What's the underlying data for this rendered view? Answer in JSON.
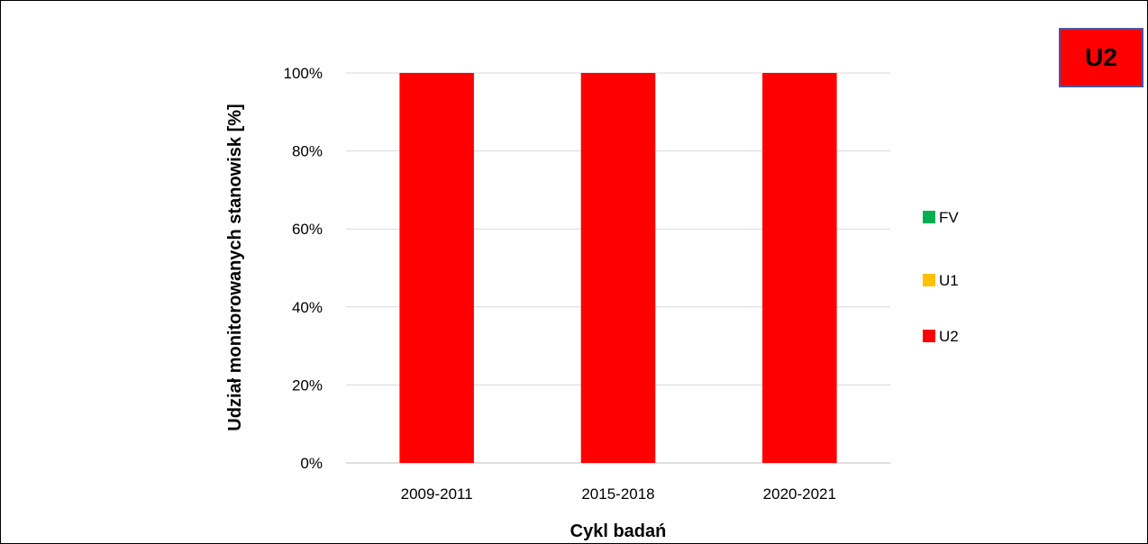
{
  "badge": {
    "label": "U2",
    "color": "#ff0000"
  },
  "chart_data": {
    "type": "bar",
    "stacked": true,
    "categories": [
      "2009-2011",
      "2015-2018",
      "2020-2021"
    ],
    "series": [
      {
        "name": "FV",
        "values": [
          0,
          0,
          0
        ],
        "color": "#00b050"
      },
      {
        "name": "U1",
        "values": [
          0,
          0,
          0
        ],
        "color": "#ffc000"
      },
      {
        "name": "U2",
        "values": [
          100,
          100,
          100
        ],
        "color": "#ff0000"
      }
    ],
    "xlabel": "Cykl badań",
    "ylabel": "Udział monitorowanych stanowisk [%]",
    "ylim": [
      0,
      100
    ],
    "yticks": [
      0,
      20,
      40,
      60,
      80,
      100
    ],
    "ytick_suffix": "%",
    "grid": true,
    "legend": "right"
  }
}
